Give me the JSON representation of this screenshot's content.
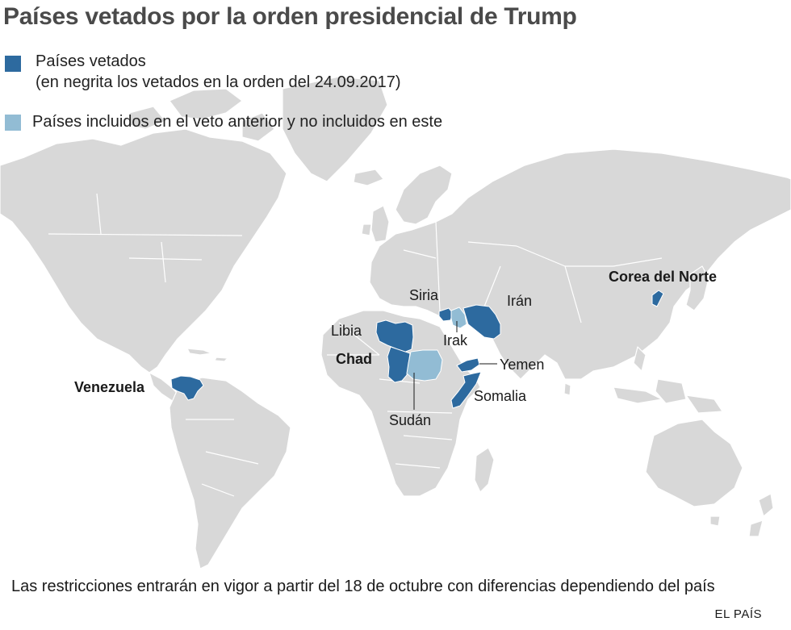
{
  "title": "Países vetados por la orden presidencial de Trump",
  "legend": [
    {
      "label": "Países vetados",
      "sublabel": "(en negrita los vetados en la orden del 24.09.2017)",
      "color": "#2d6a9f"
    },
    {
      "label": "Países incluidos en el veto anterior y no incluidos en este",
      "color": "#92bcd4"
    }
  ],
  "colors": {
    "land": "#d8d8d8",
    "border": "#ffffff",
    "banned": "#2d6a9f",
    "previous": "#92bcd4",
    "water": "#ffffff"
  },
  "countries": {
    "venezuela": {
      "name": "Venezuela",
      "bold": true,
      "status": "banned"
    },
    "libia": {
      "name": "Libia",
      "bold": false,
      "status": "banned"
    },
    "chad": {
      "name": "Chad",
      "bold": true,
      "status": "banned"
    },
    "sudan": {
      "name": "Sudán",
      "bold": false,
      "status": "previous"
    },
    "siria": {
      "name": "Siria",
      "bold": false,
      "status": "banned"
    },
    "irak": {
      "name": "Irak",
      "bold": false,
      "status": "previous"
    },
    "iran": {
      "name": "Irán",
      "bold": false,
      "status": "banned"
    },
    "yemen": {
      "name": "Yemen",
      "bold": false,
      "status": "banned"
    },
    "somalia": {
      "name": "Somalia",
      "bold": false,
      "status": "banned"
    },
    "corea": {
      "name": "Corea del Norte",
      "bold": true,
      "status": "banned"
    }
  },
  "footnote": "Las restricciones entrarán en vigor a partir del 18 de octubre con diferencias dependiendo del país",
  "source": "EL PAÍS"
}
